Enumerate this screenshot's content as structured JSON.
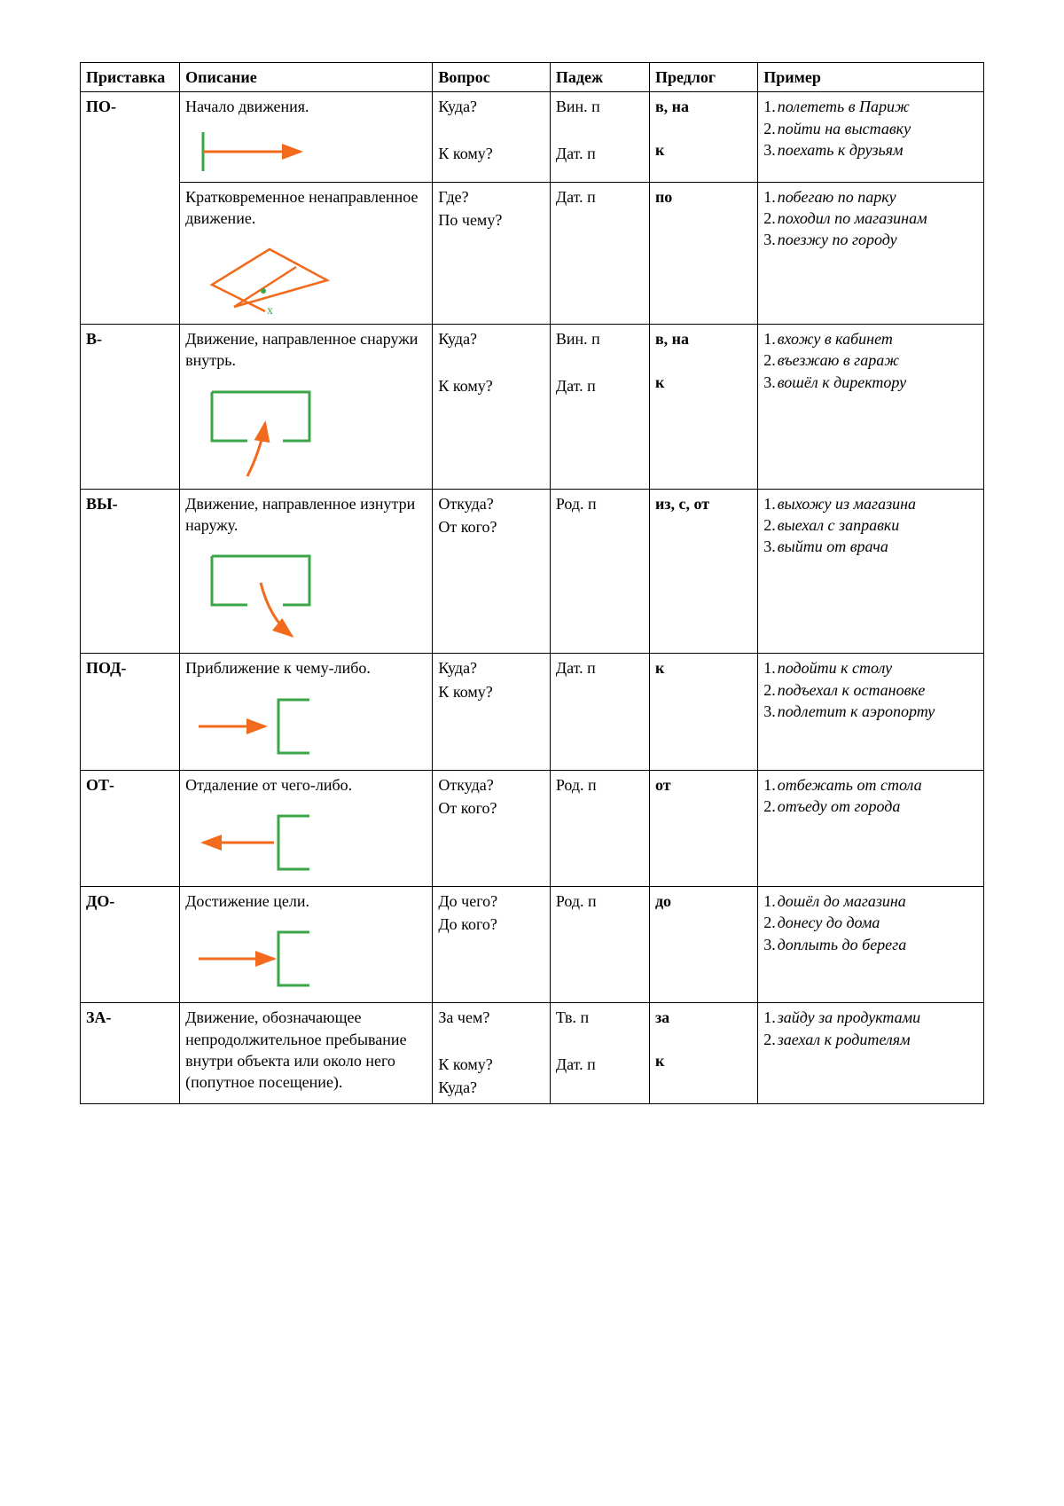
{
  "colors": {
    "arrow": "#f26a1b",
    "shape": "#3aa648",
    "border": "#000000",
    "text": "#000000",
    "bg": "#ffffff"
  },
  "headers": {
    "prefix": "Приставка",
    "desc": "Описание",
    "question": "Вопрос",
    "case": "Падеж",
    "prep": "Предлог",
    "example": "Пример"
  },
  "rows": [
    {
      "prefix": "ПО-",
      "subrows": [
        {
          "desc": "Начало движения.",
          "diagram": "start",
          "questions": [
            "Куда?",
            "",
            "К кому?"
          ],
          "cases": [
            "Вин. п",
            "",
            "Дат. п"
          ],
          "preps": [
            "в, на",
            "",
            "к"
          ],
          "examples": [
            "полететь в Париж",
            "пойти на выставку",
            "поехать к друзьям"
          ]
        },
        {
          "desc": "Кратковременное ненаправленное движение.",
          "diagram": "random",
          "questions": [
            "Где?",
            "По чему?"
          ],
          "cases": [
            "Дат. п"
          ],
          "preps": [
            "по"
          ],
          "examples": [
            "побегаю по парку",
            "походил по магазинам",
            "поезжу по городу"
          ]
        }
      ]
    },
    {
      "prefix": "В-",
      "subrows": [
        {
          "desc": "Движение, направленное снаружи внутрь.",
          "diagram": "into",
          "questions": [
            "Куда?",
            "",
            "К кому?"
          ],
          "cases": [
            "Вин. п",
            "",
            "Дат. п"
          ],
          "preps": [
            "в, на",
            "",
            "к"
          ],
          "examples": [
            "вхожу в кабинет",
            "въезжаю в гараж",
            "вошёл к директору"
          ]
        }
      ]
    },
    {
      "prefix": "ВЫ-",
      "subrows": [
        {
          "desc": "Движение, направленное изнутри наружу.",
          "diagram": "outof",
          "questions": [
            "Откуда?",
            "От кого?"
          ],
          "cases": [
            "Род. п"
          ],
          "preps": [
            "из, с, от"
          ],
          "examples": [
            "выхожу из магазина",
            "выехал с заправки",
            "выйти от врача"
          ]
        }
      ]
    },
    {
      "prefix": "ПОД-",
      "subrows": [
        {
          "desc": "Приближение к чему-либо.",
          "diagram": "approach",
          "questions": [
            "Куда?",
            "К кому?"
          ],
          "cases": [
            "Дат. п"
          ],
          "preps": [
            "к"
          ],
          "examples": [
            "подойти к столу",
            "подъехал к остановке",
            "подлетит к аэропорту"
          ]
        }
      ]
    },
    {
      "prefix": "ОТ-",
      "subrows": [
        {
          "desc": "Отдаление от чего-либо.",
          "diagram": "away",
          "questions": [
            "Откуда?",
            "От кого?"
          ],
          "cases": [
            "Род. п"
          ],
          "preps": [
            "от"
          ],
          "examples": [
            "отбежать от стола",
            "отъеду от города"
          ]
        }
      ]
    },
    {
      "prefix": "ДО-",
      "subrows": [
        {
          "desc": "Достижение цели.",
          "diagram": "reach",
          "questions": [
            "До чего?",
            "До кого?"
          ],
          "cases": [
            "Род. п"
          ],
          "preps": [
            "до"
          ],
          "examples": [
            "дошёл до магазина",
            "донесу до дома",
            "доплыть до берега"
          ]
        }
      ]
    },
    {
      "prefix": "ЗА-",
      "subrows": [
        {
          "desc": "Движение, обозначающее непродолжительное пребывание внутри объекта или около него (попутное посещение).",
          "diagram": null,
          "questions": [
            "За чем?",
            "",
            "К кому?",
            "Куда?"
          ],
          "cases": [
            "Тв. п",
            "",
            "Дат. п"
          ],
          "preps": [
            "за",
            "",
            "к"
          ],
          "examples": [
            "зайду за продуктами",
            "заехал к родителям"
          ]
        }
      ]
    }
  ]
}
